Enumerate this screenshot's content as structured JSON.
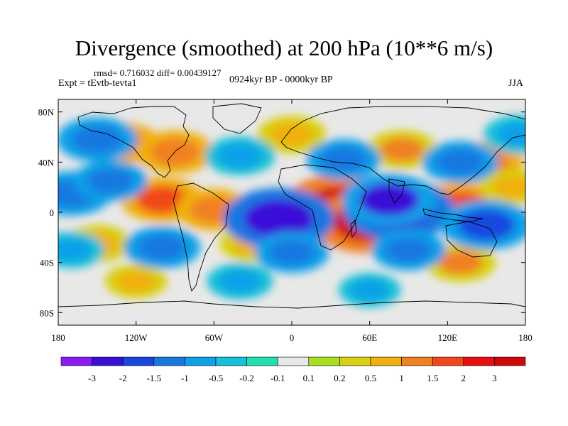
{
  "chart_data": {
    "type": "heatmap",
    "title": "Divergence (smoothed) at 200 hPa (10**6 m/s)",
    "stats_text": "rmsd= 0.716032 diff= 0.00439127",
    "left_label": "Expt = tEvtb-tevta1",
    "center_label": "0924kyr BP - 0000kyr BP",
    "right_label": "JJA",
    "x_ticks": [
      "180",
      "120W",
      "60W",
      "0",
      "60E",
      "120E",
      "180"
    ],
    "x_tick_values": [
      -180,
      -120,
      -60,
      0,
      60,
      120,
      180
    ],
    "y_ticks": [
      "80N",
      "40N",
      "0",
      "40S",
      "80S"
    ],
    "y_tick_values": [
      80,
      40,
      0,
      -40,
      -80
    ],
    "xlim": [
      -180,
      180
    ],
    "ylim": [
      -90,
      90
    ],
    "colorbar": {
      "labels": [
        "-3",
        "-2",
        "-1.5",
        "-1",
        "-0.5",
        "-0.2",
        "-0.1",
        "0.1",
        "0.2",
        "0.5",
        "1",
        "1.5",
        "2",
        "3"
      ],
      "levels": [
        -3,
        -2,
        -1.5,
        -1,
        -0.5,
        -0.2,
        -0.1,
        0.1,
        0.2,
        0.5,
        1,
        1.5,
        2,
        3
      ],
      "colors": [
        "#8a1cf0",
        "#3a10d8",
        "#1848e0",
        "#1878e0",
        "#10a0e8",
        "#18c0d8",
        "#20e0b0",
        "#e8e8e8",
        "#a8e020",
        "#d8d010",
        "#f0b010",
        "#f08020",
        "#f04818",
        "#e81010",
        "#d00808"
      ]
    },
    "anomalies": [
      {
        "lon": 38,
        "lat": 5,
        "value": 3.2
      },
      {
        "lon": 58,
        "lat": -8,
        "value": 3.0
      },
      {
        "lon": 130,
        "lat": 5,
        "value": 1.8
      },
      {
        "lon": -100,
        "lat": 10,
        "value": 1.6
      },
      {
        "lon": -60,
        "lat": 2,
        "value": 1.3
      },
      {
        "lon": -130,
        "lat": 55,
        "value": 1.2
      },
      {
        "lon": -90,
        "lat": 48,
        "value": 1.4
      },
      {
        "lon": 0,
        "lat": 62,
        "value": 0.9
      },
      {
        "lon": 85,
        "lat": 50,
        "value": 1.0
      },
      {
        "lon": 150,
        "lat": 40,
        "value": 1.2
      },
      {
        "lon": -150,
        "lat": -25,
        "value": 0.9
      },
      {
        "lon": -30,
        "lat": -25,
        "value": 0.8
      },
      {
        "lon": 130,
        "lat": -40,
        "value": 1.0
      },
      {
        "lon": -120,
        "lat": -55,
        "value": 0.6
      },
      {
        "lon": 170,
        "lat": 20,
        "value": 0.7
      },
      {
        "lon": -10,
        "lat": -5,
        "value": -3.0
      },
      {
        "lon": 82,
        "lat": 2,
        "value": -3.0
      },
      {
        "lon": 75,
        "lat": 10,
        "value": -2.2
      },
      {
        "lon": 150,
        "lat": -10,
        "value": -2.0
      },
      {
        "lon": -170,
        "lat": 15,
        "value": -1.5
      },
      {
        "lon": -140,
        "lat": 25,
        "value": -1.2
      },
      {
        "lon": -150,
        "lat": 58,
        "value": -1.5
      },
      {
        "lon": 130,
        "lat": 40,
        "value": -1.3
      },
      {
        "lon": 40,
        "lat": 42,
        "value": -1.2
      },
      {
        "lon": -40,
        "lat": 45,
        "value": -1.0
      },
      {
        "lon": 175,
        "lat": 62,
        "value": -1.0
      },
      {
        "lon": -100,
        "lat": -28,
        "value": -1.3
      },
      {
        "lon": 0,
        "lat": -32,
        "value": -1.2
      },
      {
        "lon": 90,
        "lat": -30,
        "value": -1.2
      },
      {
        "lon": -170,
        "lat": -30,
        "value": -0.8
      },
      {
        "lon": -40,
        "lat": -55,
        "value": -0.8
      },
      {
        "lon": 60,
        "lat": -62,
        "value": -0.6
      }
    ]
  }
}
